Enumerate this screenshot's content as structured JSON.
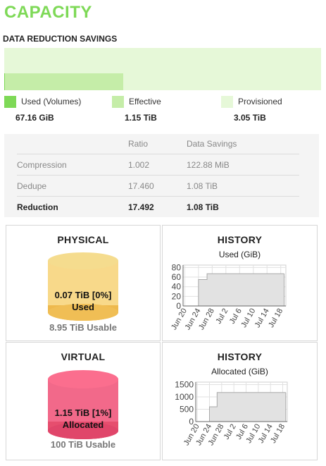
{
  "page_title": "CAPACITY",
  "data_reduction": {
    "title": "DATA REDUCTION SAVINGS",
    "colors": {
      "used": "#7ed957",
      "effective": "#c5eda8",
      "provisioned": "#e6f8d8"
    },
    "used_fraction": 0.375,
    "effective_fraction": 0.375,
    "legend": [
      {
        "label": "Used (Volumes)",
        "value": "67.16 GiB"
      },
      {
        "label": "Effective",
        "value": "1.15 TiB"
      },
      {
        "label": "Provisioned",
        "value": "3.05 TiB"
      }
    ],
    "table": {
      "headers": [
        "",
        "Ratio",
        "Data Savings"
      ],
      "rows": [
        [
          "Compression",
          "1.002",
          "122.88 MiB"
        ],
        [
          "Dedupe",
          "17.460",
          "1.08 TiB"
        ],
        [
          "Reduction",
          "17.492",
          "1.08 TiB"
        ]
      ]
    }
  },
  "physical": {
    "title": "PHYSICAL",
    "label_line1": "0.07 TiB [0%]",
    "label_line2": "Used",
    "usable": "8.95 TiB Usable",
    "fill_fraction": 0.0,
    "colors": {
      "top": "#f5dc8e",
      "body": "#f8d98a",
      "fill": "#eeb94d"
    }
  },
  "virtual": {
    "title": "VIRTUAL",
    "label_line1": "1.15 TiB [1%]",
    "label_line2": "Allocated",
    "usable": "100 TiB Usable",
    "fill_fraction": 0.01,
    "colors": {
      "top": "#fb6e8e",
      "body": "#f2698a",
      "fill": "#e64e6e"
    }
  },
  "chart_data": [
    {
      "type": "area",
      "title": "HISTORY",
      "subtitle": "Used (GiB)",
      "x_ticks": [
        "Jun 20",
        "Jun 24",
        "Jun 28",
        "Jul 2",
        "Jul 6",
        "Jul 10",
        "Jul 14",
        "Jul 18"
      ],
      "y_ticks": [
        0,
        20,
        40,
        60,
        80
      ],
      "ylim": [
        0,
        85
      ],
      "xlim": [
        0,
        30
      ],
      "x": [
        0,
        4.5,
        4.5,
        7,
        7,
        29.5
      ],
      "y": [
        0,
        0,
        55,
        55,
        67,
        67
      ],
      "grid": true
    },
    {
      "type": "area",
      "title": "HISTORY",
      "subtitle": "Allocated (GiB)",
      "x_ticks": [
        "Jun 20",
        "Jun 24",
        "Jun 28",
        "Jul 2",
        "Jul 6",
        "Jul 10",
        "Jul 14",
        "Jul 18"
      ],
      "y_ticks": [
        0,
        500,
        1000,
        1500
      ],
      "ylim": [
        0,
        1600
      ],
      "xlim": [
        0,
        30
      ],
      "x": [
        0,
        4.5,
        4.5,
        7,
        7,
        29.5
      ],
      "y": [
        0,
        0,
        600,
        600,
        1180,
        1180
      ],
      "grid": true
    }
  ]
}
